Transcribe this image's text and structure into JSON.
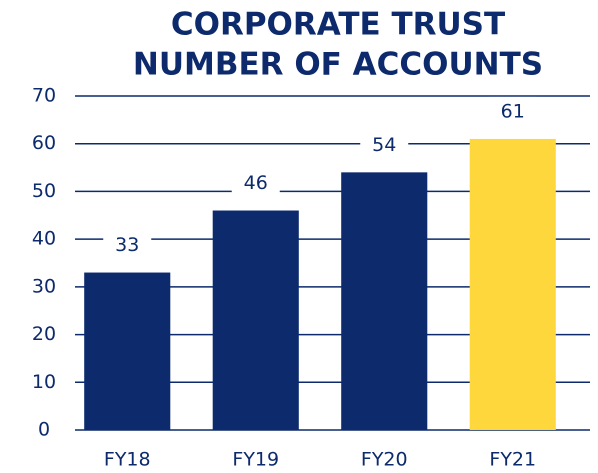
{
  "chart_data": {
    "type": "bar",
    "title": [
      "CORPORATE TRUST",
      "NUMBER OF ACCOUNTS"
    ],
    "categories": [
      "FY18",
      "FY19",
      "FY20",
      "FY21"
    ],
    "values": [
      33,
      46,
      54,
      61
    ],
    "colors": [
      "#0c2a6c",
      "#0c2a6c",
      "#0c2a6c",
      "#fdd73b"
    ],
    "ylim": [
      0,
      70
    ],
    "yticks": [
      0,
      10,
      20,
      30,
      40,
      50,
      60,
      70
    ],
    "grid": true
  }
}
